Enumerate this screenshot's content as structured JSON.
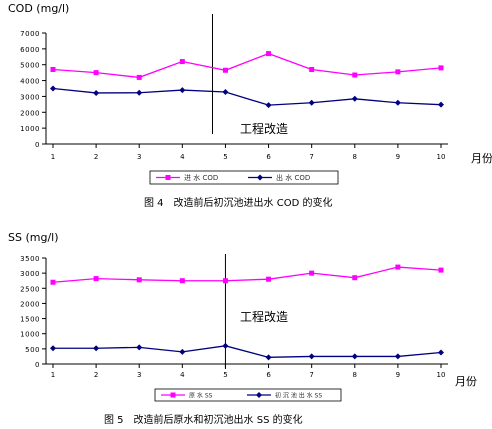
{
  "chart_data": [
    {
      "type": "line",
      "ylabel": "COD (mg/l)",
      "xlabel": "月份",
      "caption": "图 4　改造前后初沉池进出水 COD 的变化",
      "annotation": "工程改造",
      "annotation_x": 4.7,
      "x": [
        "1",
        "2",
        "3",
        "4",
        "5",
        "6",
        "7",
        "8",
        "9",
        "10"
      ],
      "ylim": [
        0,
        7000
      ],
      "yticks": [
        "0",
        "1000",
        "2000",
        "3000",
        "4000",
        "5000",
        "6000",
        "7000"
      ],
      "series": [
        {
          "name": "进 水 COD",
          "color": "#ff00ff",
          "marker": "square",
          "values": [
            4700,
            4500,
            4200,
            5200,
            4650,
            5700,
            4700,
            4350,
            4550,
            4800
          ]
        },
        {
          "name": "出 水 COD",
          "color": "#000080",
          "marker": "diamond",
          "values": [
            3500,
            3220,
            3230,
            3400,
            3280,
            2450,
            2600,
            2850,
            2600,
            2480
          ]
        }
      ]
    },
    {
      "type": "line",
      "ylabel": "SS (mg/l)",
      "xlabel": "月份",
      "caption": "图 5　改造前后原水和初沉池出水 SS 的变化",
      "annotation": "工程改造",
      "annotation_x": 5,
      "x": [
        "1",
        "2",
        "3",
        "4",
        "5",
        "6",
        "7",
        "8",
        "9",
        "10"
      ],
      "ylim": [
        0,
        3500
      ],
      "yticks": [
        "0",
        "500",
        "1000",
        "1500",
        "2000",
        "2500",
        "3000",
        "3500"
      ],
      "series": [
        {
          "name": "原 水 SS",
          "color": "#ff00ff",
          "marker": "square",
          "values": [
            2700,
            2820,
            2780,
            2750,
            2750,
            2800,
            3000,
            2850,
            3200,
            3100
          ]
        },
        {
          "name": "初 沉 池 出 水 SS",
          "color": "#000080",
          "marker": "diamond",
          "values": [
            520,
            520,
            550,
            400,
            600,
            220,
            250,
            250,
            250,
            380
          ]
        }
      ]
    }
  ]
}
